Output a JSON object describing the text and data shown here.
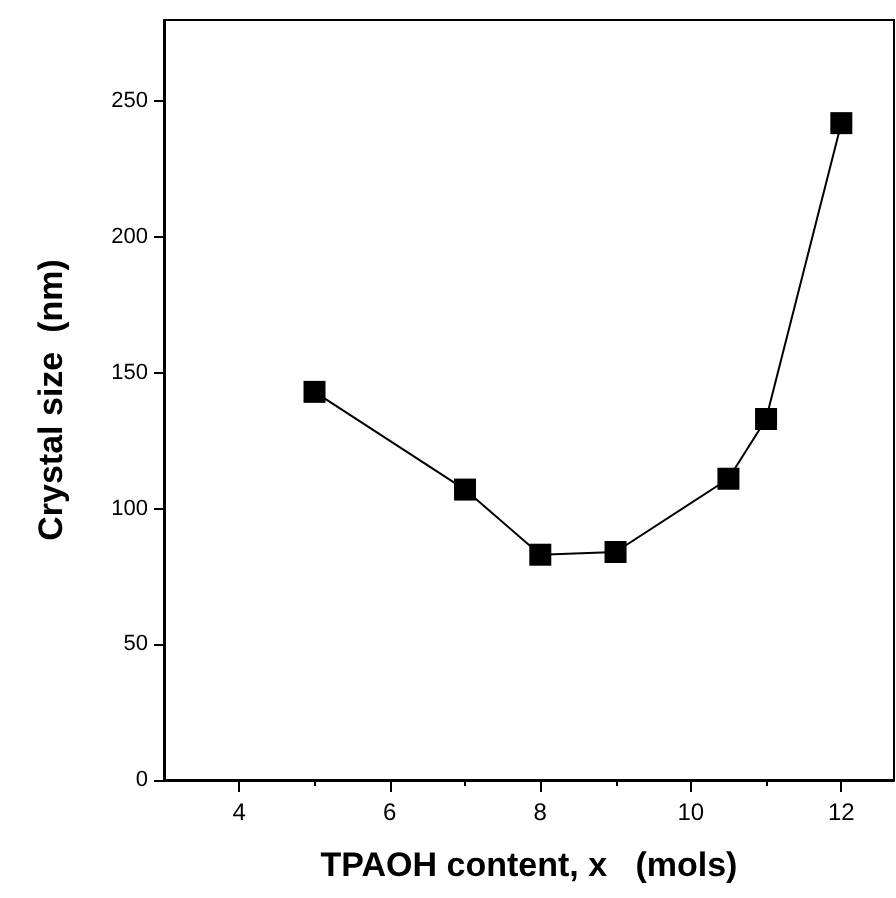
{
  "chart_data": {
    "type": "line",
    "xlabel": "TPAOH content, x   (mols)",
    "ylabel": "Crystal size  (nm)",
    "x": [
      5,
      7,
      8,
      9,
      10.5,
      11,
      12
    ],
    "series": [
      {
        "color": "#000000",
        "values": [
          143,
          107,
          83,
          84,
          111,
          133,
          242
        ]
      }
    ],
    "xlim": [
      3,
      12.7
    ],
    "xticks": [
      4,
      6,
      8,
      10,
      12
    ],
    "ylim": [
      0,
      280
    ],
    "yticks": [
      0,
      50,
      100,
      150,
      200,
      250
    ],
    "marker": "square",
    "line_style": "solid",
    "grid": false
  }
}
